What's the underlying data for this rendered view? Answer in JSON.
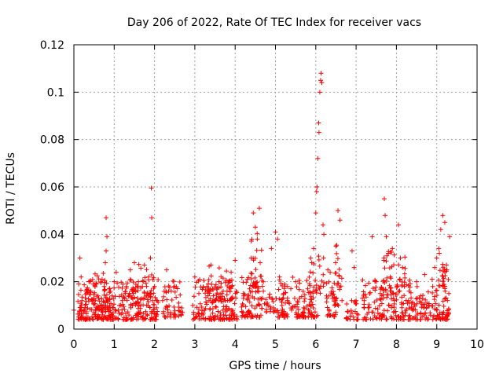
{
  "chart_data": {
    "type": "scatter",
    "title": "Day 206 of 2022, Rate Of TEC Index for receiver vacs",
    "xlabel": "GPS time / hours",
    "ylabel": "ROTI / TECUs",
    "xlim": [
      0,
      10
    ],
    "ylim": [
      0,
      0.12
    ],
    "x_ticks": [
      0,
      1,
      2,
      3,
      4,
      5,
      6,
      7,
      8,
      9,
      10
    ],
    "y_ticks": [
      0,
      0.02,
      0.04,
      0.06,
      0.08,
      0.1,
      0.12
    ],
    "x_tick_labels": [
      "0",
      "1",
      "2",
      "3",
      "4",
      "5",
      "6",
      "7",
      "8",
      "9",
      "10"
    ],
    "y_tick_labels": [
      "0",
      "0.02",
      "0.04",
      "0.06",
      "0.08",
      "0.1",
      "0.12"
    ],
    "grid": true,
    "marker": "plus",
    "series": [
      {
        "name": "ROTI",
        "color": "#ff0000",
        "points": [
          [
            0.0,
            0.008
          ],
          [
            0.12,
            0.019
          ],
          [
            0.15,
            0.03
          ],
          [
            0.18,
            0.022
          ],
          [
            0.2,
            0.012
          ],
          [
            0.25,
            0.008
          ],
          [
            0.3,
            0.016
          ],
          [
            0.35,
            0.005
          ],
          [
            0.4,
            0.02
          ],
          [
            0.45,
            0.012
          ],
          [
            0.5,
            0.007
          ],
          [
            0.55,
            0.019
          ],
          [
            0.6,
            0.014
          ],
          [
            0.65,
            0.01
          ],
          [
            0.7,
            0.021
          ],
          [
            0.75,
            0.018
          ],
          [
            0.78,
            0.028
          ],
          [
            0.8,
            0.033
          ],
          [
            0.8,
            0.047
          ],
          [
            0.82,
            0.039
          ],
          [
            0.85,
            0.012
          ],
          [
            0.9,
            0.009
          ],
          [
            0.95,
            0.014
          ],
          [
            1.0,
            0.02
          ],
          [
            1.05,
            0.024
          ],
          [
            1.1,
            0.008
          ],
          [
            1.2,
            0.012
          ],
          [
            1.3,
            0.018
          ],
          [
            1.4,
            0.025
          ],
          [
            1.45,
            0.016
          ],
          [
            1.5,
            0.028
          ],
          [
            1.55,
            0.011
          ],
          [
            1.6,
            0.02
          ],
          [
            1.65,
            0.007
          ],
          [
            1.7,
            0.018
          ],
          [
            1.75,
            0.027
          ],
          [
            1.8,
            0.014
          ],
          [
            1.85,
            0.022
          ],
          [
            1.9,
            0.03
          ],
          [
            1.92,
            0.0595
          ],
          [
            1.93,
            0.047
          ],
          [
            1.95,
            0.012
          ],
          [
            2.0,
            0.018
          ],
          [
            2.05,
            0.009
          ],
          [
            2.2,
            0.012
          ],
          [
            2.3,
            0.025
          ],
          [
            2.35,
            0.016
          ],
          [
            2.4,
            0.007
          ],
          [
            2.5,
            0.018
          ],
          [
            2.6,
            0.011
          ],
          [
            2.95,
            0.01
          ],
          [
            3.0,
            0.022
          ],
          [
            3.1,
            0.015
          ],
          [
            3.2,
            0.006
          ],
          [
            3.3,
            0.018
          ],
          [
            3.4,
            0.027
          ],
          [
            3.5,
            0.012
          ],
          [
            3.6,
            0.02
          ],
          [
            3.7,
            0.008
          ],
          [
            3.8,
            0.016
          ],
          [
            3.9,
            0.024
          ],
          [
            4.0,
            0.029
          ],
          [
            4.05,
            0.004
          ],
          [
            4.2,
            0.015
          ],
          [
            4.3,
            0.021
          ],
          [
            4.4,
            0.03
          ],
          [
            4.45,
            0.049
          ],
          [
            4.5,
            0.043
          ],
          [
            4.55,
            0.038
          ],
          [
            4.6,
            0.051
          ],
          [
            4.62,
            0.028
          ],
          [
            4.7,
            0.016
          ],
          [
            4.8,
            0.011
          ],
          [
            4.9,
            0.034
          ],
          [
            4.95,
            0.009
          ],
          [
            5.0,
            0.041
          ],
          [
            5.05,
            0.038
          ],
          [
            5.1,
            0.022
          ],
          [
            5.2,
            0.015
          ],
          [
            5.3,
            0.018
          ],
          [
            5.4,
            0.008
          ],
          [
            5.5,
            0.02
          ],
          [
            5.6,
            0.013
          ],
          [
            5.7,
            0.009
          ],
          [
            5.8,
            0.017
          ],
          [
            5.9,
            0.028
          ],
          [
            5.95,
            0.034
          ],
          [
            6.0,
            0.049
          ],
          [
            6.02,
            0.058
          ],
          [
            6.03,
            0.06
          ],
          [
            6.05,
            0.072
          ],
          [
            6.07,
            0.087
          ],
          [
            6.08,
            0.083
          ],
          [
            6.1,
            0.1
          ],
          [
            6.12,
            0.105
          ],
          [
            6.13,
            0.108
          ],
          [
            6.15,
            0.104
          ],
          [
            6.18,
            0.044
          ],
          [
            6.2,
            0.04
          ],
          [
            6.3,
            0.025
          ],
          [
            6.4,
            0.015
          ],
          [
            6.5,
            0.035
          ],
          [
            6.55,
            0.05
          ],
          [
            6.6,
            0.046
          ],
          [
            6.65,
            0.012
          ],
          [
            6.9,
            0.033
          ],
          [
            6.95,
            0.026
          ],
          [
            7.0,
            0.012
          ],
          [
            7.05,
            0.006
          ],
          [
            7.2,
            0.012
          ],
          [
            7.3,
            0.009
          ],
          [
            7.4,
            0.039
          ],
          [
            7.5,
            0.02
          ],
          [
            7.6,
            0.015
          ],
          [
            7.7,
            0.055
          ],
          [
            7.72,
            0.048
          ],
          [
            7.75,
            0.039
          ],
          [
            7.8,
            0.032
          ],
          [
            7.85,
            0.022
          ],
          [
            7.9,
            0.034
          ],
          [
            7.95,
            0.012
          ],
          [
            8.05,
            0.044
          ],
          [
            8.1,
            0.03
          ],
          [
            8.15,
            0.026
          ],
          [
            8.2,
            0.018
          ],
          [
            8.3,
            0.012
          ],
          [
            8.4,
            0.008
          ],
          [
            8.5,
            0.02
          ],
          [
            8.6,
            0.014
          ],
          [
            8.7,
            0.023
          ],
          [
            8.8,
            0.01
          ],
          [
            8.9,
            0.018
          ],
          [
            8.95,
            0.026
          ],
          [
            9.0,
            0.03
          ],
          [
            9.05,
            0.034
          ],
          [
            9.1,
            0.042
          ],
          [
            9.15,
            0.048
          ],
          [
            9.2,
            0.045
          ],
          [
            9.25,
            0.025
          ],
          [
            9.3,
            0.015
          ],
          [
            9.32,
            0.039
          ]
        ],
        "clusters": [
          {
            "x": [
              0.1,
              1.15
            ],
            "y": [
              0.004,
              0.021
            ],
            "n": 160
          },
          {
            "x": [
              0.25,
              0.9
            ],
            "y": [
              0.008,
              0.024
            ],
            "n": 40
          },
          {
            "x": [
              1.15,
              2.1
            ],
            "y": [
              0.004,
              0.021
            ],
            "n": 130
          },
          {
            "x": [
              1.4,
              2.0
            ],
            "y": [
              0.01,
              0.028
            ],
            "n": 40
          },
          {
            "x": [
              2.2,
              2.7
            ],
            "y": [
              0.005,
              0.021
            ],
            "n": 50
          },
          {
            "x": [
              2.95,
              4.05
            ],
            "y": [
              0.004,
              0.021
            ],
            "n": 150
          },
          {
            "x": [
              3.3,
              4.0
            ],
            "y": [
              0.012,
              0.027
            ],
            "n": 35
          },
          {
            "x": [
              4.15,
              4.65
            ],
            "y": [
              0.005,
              0.022
            ],
            "n": 70
          },
          {
            "x": [
              4.35,
              4.7
            ],
            "y": [
              0.018,
              0.042
            ],
            "n": 25
          },
          {
            "x": [
              4.65,
              5.05
            ],
            "y": [
              0.007,
              0.016
            ],
            "n": 25
          },
          {
            "x": [
              5.05,
              6.05
            ],
            "y": [
              0.005,
              0.022
            ],
            "n": 120
          },
          {
            "x": [
              5.8,
              6.2
            ],
            "y": [
              0.015,
              0.034
            ],
            "n": 25
          },
          {
            "x": [
              6.2,
              6.6
            ],
            "y": [
              0.005,
              0.024
            ],
            "n": 45
          },
          {
            "x": [
              6.45,
              6.65
            ],
            "y": [
              0.018,
              0.037
            ],
            "n": 12
          },
          {
            "x": [
              6.75,
              7.05
            ],
            "y": [
              0.004,
              0.013
            ],
            "n": 25
          },
          {
            "x": [
              7.15,
              7.95
            ],
            "y": [
              0.004,
              0.021
            ],
            "n": 90
          },
          {
            "x": [
              7.6,
              7.95
            ],
            "y": [
              0.015,
              0.035
            ],
            "n": 25
          },
          {
            "x": [
              7.95,
              8.95
            ],
            "y": [
              0.004,
              0.021
            ],
            "n": 110
          },
          {
            "x": [
              8.0,
              8.25
            ],
            "y": [
              0.018,
              0.032
            ],
            "n": 15
          },
          {
            "x": [
              8.95,
              9.3
            ],
            "y": [
              0.004,
              0.025
            ],
            "n": 60
          },
          {
            "x": [
              9.05,
              9.25
            ],
            "y": [
              0.018,
              0.038
            ],
            "n": 15
          }
        ]
      }
    ]
  }
}
